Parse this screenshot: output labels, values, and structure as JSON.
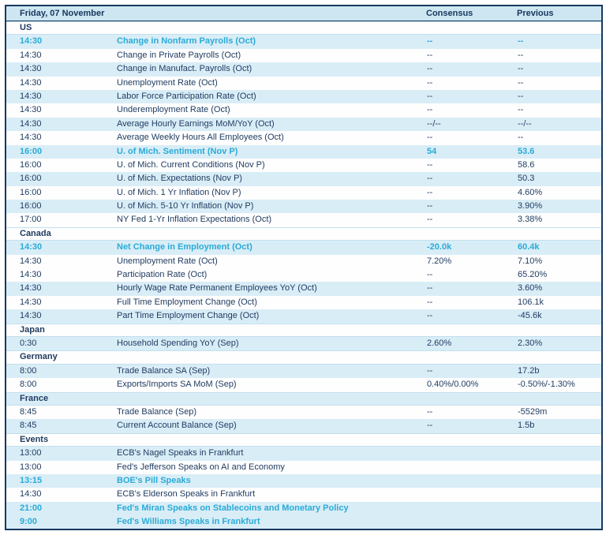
{
  "table": {
    "title": "Friday, 07 November",
    "columns": {
      "consensus": "Consensus",
      "previous": "Previous"
    },
    "colors": {
      "accent_cyan": "#2aabd6",
      "navy_text": "#1e3a5f",
      "border_navy": "#17375e",
      "zebra_blue": "#d9edf7",
      "header_bg": "#cde6f1"
    },
    "rows": [
      {
        "type": "section",
        "label": "US",
        "bg": "white"
      },
      {
        "type": "data",
        "time": "14:30",
        "event": "Change in Nonfarm Payrolls (Oct)",
        "consensus": "--",
        "previous": "--",
        "highlight": true,
        "bg": "blue"
      },
      {
        "type": "data",
        "time": "14:30",
        "event": "Change in Private Payrolls (Oct)",
        "consensus": "--",
        "previous": "--",
        "highlight": false,
        "bg": "white"
      },
      {
        "type": "data",
        "time": "14:30",
        "event": "Change in Manufact. Payrolls (Oct)",
        "consensus": "--",
        "previous": "--",
        "highlight": false,
        "bg": "blue"
      },
      {
        "type": "data",
        "time": "14:30",
        "event": "Unemployment Rate (Oct)",
        "consensus": "--",
        "previous": "--",
        "highlight": false,
        "bg": "white"
      },
      {
        "type": "data",
        "time": "14:30",
        "event": "Labor Force Participation Rate (Oct)",
        "consensus": "--",
        "previous": "--",
        "highlight": false,
        "bg": "blue"
      },
      {
        "type": "data",
        "time": "14:30",
        "event": "Underemployment Rate (Oct)",
        "consensus": "--",
        "previous": "--",
        "highlight": false,
        "bg": "white"
      },
      {
        "type": "data",
        "time": "14:30",
        "event": "Average Hourly Earnings MoM/YoY (Oct)",
        "consensus": "--/--",
        "previous": "--/--",
        "highlight": false,
        "bg": "blue"
      },
      {
        "type": "data",
        "time": "14:30",
        "event": "Average Weekly Hours All Employees (Oct)",
        "consensus": "--",
        "previous": "--",
        "highlight": false,
        "bg": "white"
      },
      {
        "type": "data",
        "time": "16:00",
        "event": "U. of Mich. Sentiment (Nov P)",
        "consensus": "54",
        "previous": "53.6",
        "highlight": true,
        "bg": "blue"
      },
      {
        "type": "data",
        "time": "16:00",
        "event": "U. of Mich. Current Conditions (Nov P)",
        "consensus": "--",
        "previous": "58.6",
        "highlight": false,
        "bg": "white"
      },
      {
        "type": "data",
        "time": "16:00",
        "event": "U. of Mich. Expectations (Nov P)",
        "consensus": "--",
        "previous": "50.3",
        "highlight": false,
        "bg": "blue"
      },
      {
        "type": "data",
        "time": "16:00",
        "event": "U. of Mich. 1 Yr Inflation (Nov P)",
        "consensus": "--",
        "previous": "4.60%",
        "highlight": false,
        "bg": "white"
      },
      {
        "type": "data",
        "time": "16:00",
        "event": "U. of Mich. 5-10 Yr Inflation (Nov P)",
        "consensus": "--",
        "previous": "3.90%",
        "highlight": false,
        "bg": "blue"
      },
      {
        "type": "data",
        "time": "17:00",
        "event": "NY Fed 1-Yr Inflation Expectations (Oct)",
        "consensus": "--",
        "previous": "3.38%",
        "highlight": false,
        "bg": "white"
      },
      {
        "type": "section",
        "label": "Canada",
        "bg": "white"
      },
      {
        "type": "data",
        "time": "14:30",
        "event": "Net Change in Employment (Oct)",
        "consensus": "-20.0k",
        "previous": "60.4k",
        "highlight": true,
        "bg": "blue"
      },
      {
        "type": "data",
        "time": "14:30",
        "event": "Unemployment Rate (Oct)",
        "consensus": "7.20%",
        "previous": "7.10%",
        "highlight": false,
        "bg": "white"
      },
      {
        "type": "data",
        "time": "14:30",
        "event": "Participation Rate (Oct)",
        "consensus": "--",
        "previous": "65.20%",
        "highlight": false,
        "bg": "white"
      },
      {
        "type": "data",
        "time": "14:30",
        "event": "Hourly Wage Rate Permanent Employees YoY (Oct)",
        "consensus": "--",
        "previous": "3.60%",
        "highlight": false,
        "bg": "blue"
      },
      {
        "type": "data",
        "time": "14:30",
        "event": "Full Time Employment Change (Oct)",
        "consensus": "--",
        "previous": "106.1k",
        "highlight": false,
        "bg": "white"
      },
      {
        "type": "data",
        "time": "14:30",
        "event": "Part Time Employment Change (Oct)",
        "consensus": "--",
        "previous": "-45.6k",
        "highlight": false,
        "bg": "blue"
      },
      {
        "type": "section",
        "label": "Japan",
        "bg": "white"
      },
      {
        "type": "data",
        "time": "0:30",
        "event": "Household Spending YoY (Sep)",
        "consensus": "2.60%",
        "previous": "2.30%",
        "highlight": false,
        "bg": "blue"
      },
      {
        "type": "section",
        "label": "Germany",
        "bg": "white"
      },
      {
        "type": "data",
        "time": "8:00",
        "event": "Trade Balance SA (Sep)",
        "consensus": "--",
        "previous": "17.2b",
        "highlight": false,
        "bg": "blue"
      },
      {
        "type": "data",
        "time": "8:00",
        "event": "Exports/Imports SA MoM (Sep)",
        "consensus": "0.40%/0.00%",
        "previous": "-0.50%/-1.30%",
        "highlight": false,
        "bg": "white"
      },
      {
        "type": "section",
        "label": "France",
        "bg": "blue"
      },
      {
        "type": "data",
        "time": "8:45",
        "event": "Trade Balance (Sep)",
        "consensus": "--",
        "previous": "-5529m",
        "highlight": false,
        "bg": "white"
      },
      {
        "type": "data",
        "time": "8:45",
        "event": "Current Account Balance (Sep)",
        "consensus": "--",
        "previous": "1.5b",
        "highlight": false,
        "bg": "blue"
      },
      {
        "type": "section",
        "label": "Events",
        "bg": "white"
      },
      {
        "type": "data",
        "time": "13:00",
        "event": "ECB's Nagel Speaks in Frankfurt",
        "consensus": "",
        "previous": "",
        "highlight": false,
        "bg": "blue"
      },
      {
        "type": "data",
        "time": "13:00",
        "event": "Fed's Jefferson Speaks on AI and Economy",
        "consensus": "",
        "previous": "",
        "highlight": false,
        "bg": "white"
      },
      {
        "type": "data",
        "time": "13:15",
        "event": "BOE's Pill Speaks",
        "consensus": "",
        "previous": "",
        "highlight": true,
        "bg": "blue"
      },
      {
        "type": "data",
        "time": "14:30",
        "event": "ECB's Elderson Speaks in Frankfurt",
        "consensus": "",
        "previous": "",
        "highlight": false,
        "bg": "white"
      },
      {
        "type": "data",
        "time": "21:00",
        "event": "Fed's Miran Speaks on Stablecoins and Monetary Policy",
        "consensus": "",
        "previous": "",
        "highlight": true,
        "bg": "blue"
      },
      {
        "type": "data",
        "time": "9:00",
        "event": "Fed's Williams Speaks in Frankfurt",
        "consensus": "",
        "previous": "",
        "highlight": true,
        "bg": "blue"
      }
    ]
  }
}
